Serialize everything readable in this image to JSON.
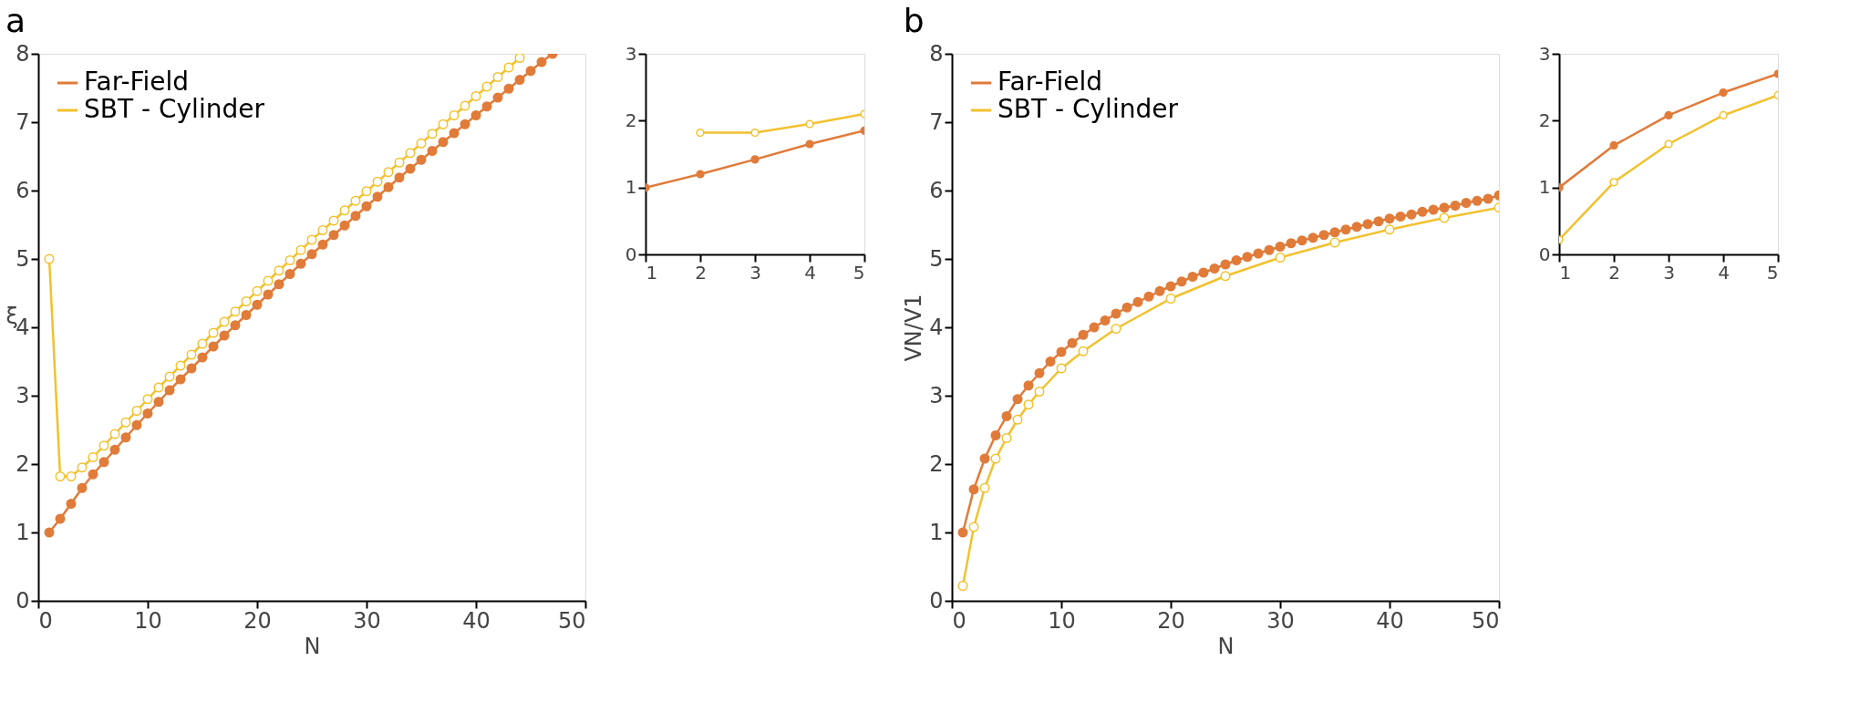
{
  "chart_data": [
    {
      "type": "line",
      "title": "a",
      "xlabel": "N",
      "ylabel": "ξ",
      "xlim": [
        0,
        50
      ],
      "ylim": [
        0,
        8
      ],
      "xticks": [
        0,
        10,
        20,
        30,
        40,
        50
      ],
      "yticks": [
        0,
        1,
        2,
        3,
        4,
        5,
        6,
        7,
        8
      ],
      "grid": false,
      "legend": "top left",
      "marker": "circle",
      "series": [
        {
          "name": "Far-Field",
          "color": "#e07b39",
          "x": [
            1,
            2,
            3,
            4,
            5,
            6,
            7,
            8,
            9,
            10,
            11,
            12,
            13,
            14,
            15,
            16,
            17,
            18,
            19,
            20,
            21,
            22,
            23,
            24,
            25,
            26,
            27,
            28,
            29,
            30,
            31,
            32,
            33,
            34,
            35,
            36,
            37,
            38,
            39,
            40,
            41,
            42,
            43,
            44,
            45,
            46,
            47
          ],
          "values": [
            1.0,
            1.2,
            1.42,
            1.65,
            1.85,
            2.03,
            2.21,
            2.39,
            2.57,
            2.74,
            2.91,
            3.08,
            3.24,
            3.4,
            3.56,
            3.72,
            3.88,
            4.03,
            4.18,
            4.33,
            4.48,
            4.63,
            4.78,
            4.93,
            5.07,
            5.21,
            5.35,
            5.49,
            5.63,
            5.77,
            5.91,
            6.05,
            6.19,
            6.32,
            6.45,
            6.58,
            6.71,
            6.84,
            6.97,
            7.1,
            7.23,
            7.36,
            7.49,
            7.62,
            7.75,
            7.88,
            8.0
          ]
        },
        {
          "name": "SBT - Cylinder",
          "color": "#f2c12e",
          "x": [
            1,
            2,
            3,
            4,
            5,
            6,
            7,
            8,
            9,
            10,
            11,
            12,
            13,
            14,
            15,
            16,
            17,
            18,
            19,
            20,
            21,
            22,
            23,
            24,
            25,
            26,
            27,
            28,
            29,
            30,
            31,
            32,
            33,
            34,
            35,
            36,
            37,
            38,
            39,
            40,
            41,
            42,
            43,
            44
          ],
          "values": [
            5.0,
            1.82,
            1.82,
            1.95,
            2.1,
            2.27,
            2.44,
            2.61,
            2.78,
            2.95,
            3.12,
            3.28,
            3.44,
            3.6,
            3.76,
            3.92,
            4.08,
            4.23,
            4.38,
            4.53,
            4.68,
            4.83,
            4.98,
            5.13,
            5.28,
            5.42,
            5.56,
            5.71,
            5.85,
            5.99,
            6.13,
            6.27,
            6.41,
            6.55,
            6.69,
            6.83,
            6.97,
            7.1,
            7.24,
            7.38,
            7.52,
            7.66,
            7.8,
            7.94
          ]
        }
      ]
    },
    {
      "type": "line",
      "xlim": [
        1,
        5
      ],
      "ylim": [
        0,
        3
      ],
      "xticks": [
        1,
        2,
        3,
        4,
        5
      ],
      "yticks": [
        0,
        1,
        2,
        3
      ],
      "grid": false,
      "marker": "circle",
      "series": [
        {
          "color": "#e07b39",
          "x": [
            1,
            2,
            3,
            4,
            5
          ],
          "values": [
            1.0,
            1.2,
            1.42,
            1.65,
            1.85
          ]
        },
        {
          "color": "#f2c12e",
          "x": [
            2,
            3,
            4,
            5
          ],
          "values": [
            1.82,
            1.82,
            1.95,
            2.1
          ]
        }
      ]
    },
    {
      "type": "line",
      "title": "b",
      "xlabel": "N",
      "ylabel": "VN/V1",
      "xlim": [
        0,
        50
      ],
      "ylim": [
        0,
        8
      ],
      "xticks": [
        0,
        10,
        20,
        30,
        40,
        50
      ],
      "yticks": [
        0,
        1,
        2,
        3,
        4,
        5,
        6,
        7,
        8
      ],
      "grid": false,
      "legend": "top left",
      "marker": "circle",
      "series": [
        {
          "name": "Far-Field",
          "color": "#e07b39",
          "x": [
            1,
            2,
            3,
            4,
            5,
            6,
            7,
            8,
            9,
            10,
            11,
            12,
            13,
            14,
            15,
            16,
            17,
            18,
            19,
            20,
            21,
            22,
            23,
            24,
            25,
            26,
            27,
            28,
            29,
            30,
            31,
            32,
            33,
            34,
            35,
            36,
            37,
            38,
            39,
            40,
            41,
            42,
            43,
            44,
            45,
            46,
            47,
            48,
            49,
            50
          ],
          "values": [
            1.0,
            1.63,
            2.08,
            2.42,
            2.7,
            2.95,
            3.15,
            3.33,
            3.5,
            3.64,
            3.77,
            3.89,
            4.0,
            4.1,
            4.2,
            4.29,
            4.37,
            4.45,
            4.53,
            4.6,
            4.67,
            4.74,
            4.8,
            4.86,
            4.92,
            4.98,
            5.03,
            5.08,
            5.13,
            5.18,
            5.23,
            5.27,
            5.31,
            5.35,
            5.39,
            5.43,
            5.47,
            5.51,
            5.55,
            5.59,
            5.62,
            5.65,
            5.69,
            5.72,
            5.75,
            5.78,
            5.82,
            5.85,
            5.88,
            5.93
          ]
        },
        {
          "name": "SBT - Cylinder",
          "color": "#f2c12e",
          "x": [
            1,
            2,
            3,
            4,
            5,
            6,
            7,
            8,
            10,
            12,
            15,
            20,
            25,
            30,
            35,
            40,
            45,
            50
          ],
          "values": [
            0.22,
            1.08,
            1.65,
            2.08,
            2.38,
            2.65,
            2.87,
            3.06,
            3.4,
            3.65,
            3.98,
            4.42,
            4.75,
            5.02,
            5.24,
            5.43,
            5.6,
            5.75
          ]
        }
      ]
    },
    {
      "type": "line",
      "xlim": [
        1,
        5
      ],
      "ylim": [
        0,
        3
      ],
      "xticks": [
        1,
        2,
        3,
        4,
        5
      ],
      "yticks": [
        0,
        1,
        2,
        3
      ],
      "grid": false,
      "marker": "circle",
      "series": [
        {
          "color": "#e07b39",
          "x": [
            1,
            2,
            3,
            4,
            5
          ],
          "values": [
            1.0,
            1.63,
            2.08,
            2.42,
            2.7
          ]
        },
        {
          "color": "#f2c12e",
          "x": [
            1,
            2,
            3,
            4,
            5
          ],
          "values": [
            0.22,
            1.08,
            1.65,
            2.08,
            2.38
          ]
        }
      ]
    }
  ]
}
